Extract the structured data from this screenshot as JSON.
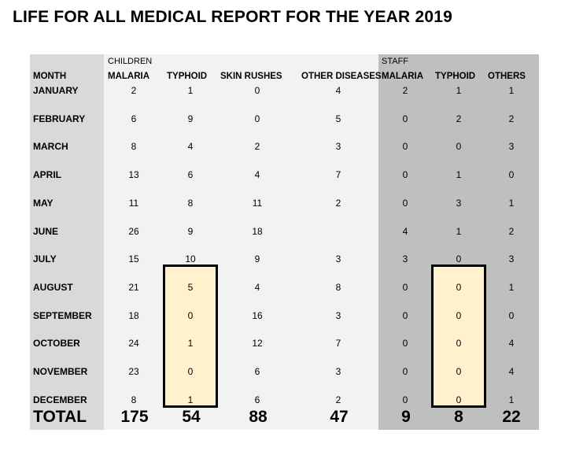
{
  "title": "LIFE FOR ALL MEDICAL REPORT FOR THE YEAR 2019",
  "groups": {
    "children": "CHILDREN",
    "staff": "STAFF"
  },
  "headers": {
    "month": "MONTH",
    "malaria": "MALARIA",
    "typhoid": "TYPHOID",
    "skin_rushes": "SKIN RUSHES",
    "other_diseases": "OTHER DISEASES",
    "staff_malaria": "MALARIA",
    "staff_typhoid": "TYPHOID",
    "staff_others": "OTHERS"
  },
  "rows": [
    {
      "month": "JANUARY",
      "malaria": "2",
      "typhoid": "1",
      "skin": "0",
      "other": "4",
      "s_malaria": "2",
      "s_typhoid": "1",
      "s_others": "1"
    },
    {
      "month": "FEBRUARY",
      "malaria": "6",
      "typhoid": "9",
      "skin": "0",
      "other": "5",
      "s_malaria": "0",
      "s_typhoid": "2",
      "s_others": "2"
    },
    {
      "month": "MARCH",
      "malaria": "8",
      "typhoid": "4",
      "skin": "2",
      "other": "3",
      "s_malaria": "0",
      "s_typhoid": "0",
      "s_others": "3"
    },
    {
      "month": "APRIL",
      "malaria": "13",
      "typhoid": "6",
      "skin": "4",
      "other": "7",
      "s_malaria": "0",
      "s_typhoid": "1",
      "s_others": "0"
    },
    {
      "month": "MAY",
      "malaria": "11",
      "typhoid": "8",
      "skin": "11",
      "other": "2",
      "s_malaria": "0",
      "s_typhoid": "3",
      "s_others": "1"
    },
    {
      "month": "JUNE",
      "malaria": "26",
      "typhoid": "9",
      "skin": "18",
      "other": "",
      "s_malaria": "4",
      "s_typhoid": "1",
      "s_others": "2"
    },
    {
      "month": "JULY",
      "malaria": "15",
      "typhoid": "10",
      "skin": "9",
      "other": "3",
      "s_malaria": "3",
      "s_typhoid": "0",
      "s_others": "3"
    },
    {
      "month": "AUGUST",
      "malaria": "21",
      "typhoid": "5",
      "skin": "4",
      "other": "8",
      "s_malaria": "0",
      "s_typhoid": "0",
      "s_others": "1"
    },
    {
      "month": "SEPTEMBER",
      "malaria": "18",
      "typhoid": "0",
      "skin": "16",
      "other": "3",
      "s_malaria": "0",
      "s_typhoid": "0",
      "s_others": "0"
    },
    {
      "month": "OCTOBER",
      "malaria": "24",
      "typhoid": "1",
      "skin": "12",
      "other": "7",
      "s_malaria": "0",
      "s_typhoid": "0",
      "s_others": "4"
    },
    {
      "month": "NOVEMBER",
      "malaria": "23",
      "typhoid": "0",
      "skin": "6",
      "other": "3",
      "s_malaria": "0",
      "s_typhoid": "0",
      "s_others": "4"
    },
    {
      "month": "DECEMBER",
      "malaria": "8",
      "typhoid": "1",
      "skin": "6",
      "other": "2",
      "s_malaria": "0",
      "s_typhoid": "0",
      "s_others": "1"
    }
  ],
  "totals": {
    "label": "TOTAL",
    "malaria": "175",
    "typhoid": "54",
    "skin": "88",
    "other": "47",
    "s_malaria": "9",
    "s_typhoid": "8",
    "s_others": "22"
  },
  "colors": {
    "month_column": "#d9d9d9",
    "children_section": "#f2f2f2",
    "staff_section": "#bfbfbf",
    "highlight_fill": "#fff2cc",
    "highlight_border": "#000000"
  }
}
